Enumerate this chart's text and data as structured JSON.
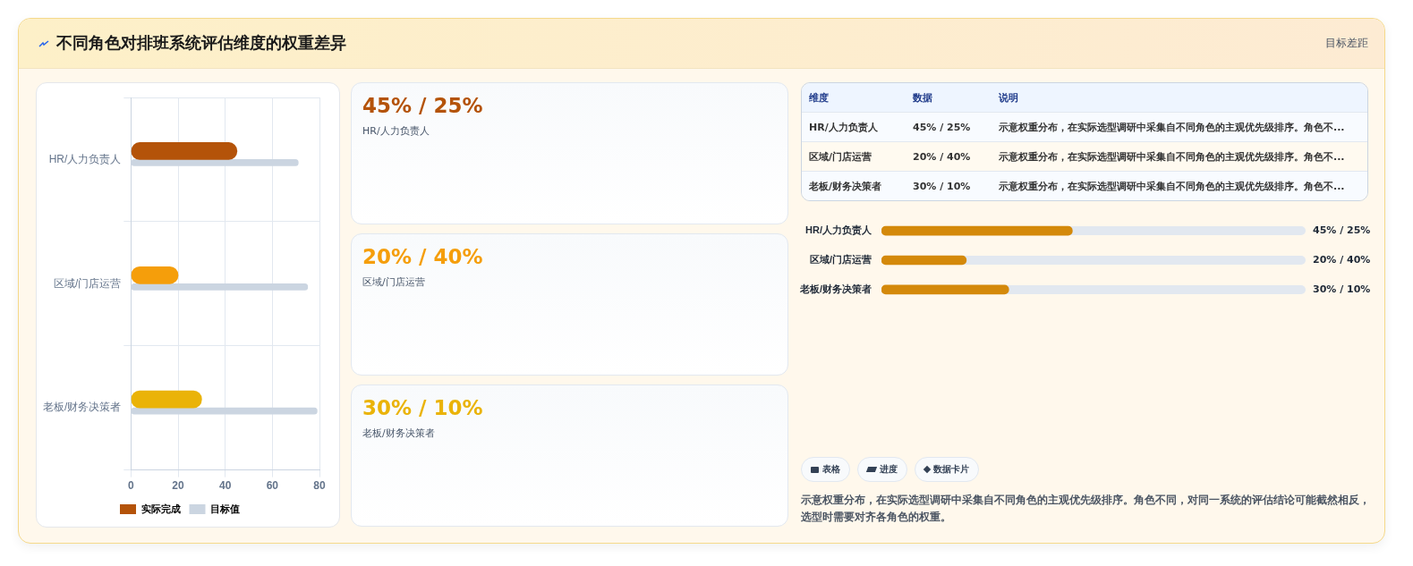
{
  "chart_data": [
    {
      "type": "bar",
      "orientation": "horizontal",
      "title": "不同角色对排班系统评估维度的权重差异",
      "annotations": [
        "目标差距"
      ],
      "categories": [
        "HR/人力负责人",
        "区域/门店运营",
        "老板/财务决策者"
      ],
      "series": [
        {
          "name": "实际完成",
          "color": "#b45309",
          "colors": [
            "#b45309",
            "#f59e0b",
            "#eab308"
          ],
          "values": [
            45,
            20,
            30
          ]
        },
        {
          "name": "目标值",
          "color": "#cbd5e1",
          "values": [
            71,
            75,
            79
          ]
        }
      ],
      "xlim": [
        0,
        80
      ],
      "xticks": [
        0,
        20,
        40,
        60,
        80
      ],
      "grid": true,
      "legend": "bottom"
    },
    {
      "type": "bar",
      "orientation": "horizontal",
      "categories": [
        "HR/人力负责人",
        "区域/门店运营",
        "老板/财务决策者"
      ],
      "values": [
        45,
        20,
        30
      ],
      "color": "#d4890a",
      "xlim": [
        0,
        100
      ],
      "tick_labels": "y",
      "value_labels": [
        "45% / 25%",
        "20% / 40%",
        "30% / 10%"
      ],
      "annotations": [
        "维度",
        "数据",
        "说明",
        "示意权重分布，在实际选型调研中采集自不同角色的主观优先级排序。角色不...",
        "表格",
        "进度",
        "数据卡片",
        "示意权重分布，在实际选型调研中采集自不同角色的主观优先级排序。角色不同，对同一系统的评估结论可能截然相反，选型时需要对齐各角色的权重。"
      ]
    }
  ]
}
